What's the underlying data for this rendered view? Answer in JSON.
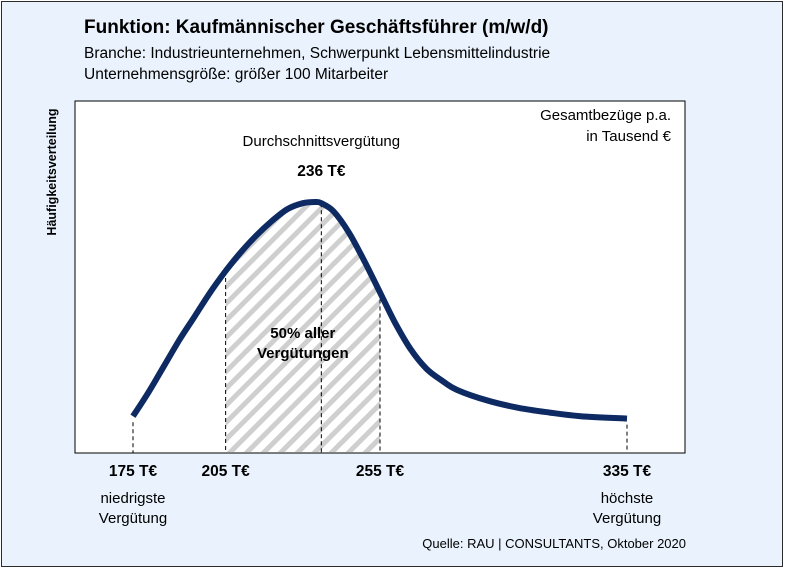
{
  "header": {
    "title": "Funktion: Kaufmännischer Geschäftsführer (m/w/d)",
    "subtitle_1": "Branche: Industrieunternehmen, Schwerpunkt Lebensmittelindustrie",
    "subtitle_2": "Unternehmensgröße: größer 100 Mitarbeiter"
  },
  "source": "Quelle: RAU | CONSULTANTS, Oktober 2020",
  "colors": {
    "card_background": "#eaf3fd",
    "curve": "#0d2a63",
    "hatch": "#cfcfcf"
  },
  "chart_data": {
    "type": "area",
    "ylabel": "Häufigkeitsverteilung",
    "unit_note_1": "Gesamtbezüge p.a.",
    "unit_note_2": "in Tausend €",
    "x_range": [
      160,
      345
    ],
    "y_range": [
      0,
      1
    ],
    "grid": false,
    "curve": {
      "x": [
        175,
        180,
        185,
        190,
        195,
        200,
        205,
        210,
        215,
        220,
        225,
        230,
        234,
        236,
        240,
        245,
        250,
        255,
        260,
        265,
        270,
        275,
        280,
        290,
        300,
        310,
        320,
        335
      ],
      "y": [
        0.1,
        0.2,
        0.31,
        0.42,
        0.52,
        0.62,
        0.71,
        0.79,
        0.86,
        0.92,
        0.97,
        0.995,
        1.0,
        0.995,
        0.96,
        0.87,
        0.75,
        0.62,
        0.49,
        0.38,
        0.3,
        0.25,
        0.21,
        0.165,
        0.135,
        0.115,
        0.1,
        0.09
      ]
    },
    "markers": [
      {
        "x": 175,
        "label": "175 T€",
        "note_1": "niedrigste",
        "note_2": "Vergütung"
      },
      {
        "x": 205,
        "label": "205 T€"
      },
      {
        "x": 236,
        "label": "236 T€",
        "note_1": "Durchschnittsvergütung"
      },
      {
        "x": 255,
        "label": "255 T€"
      },
      {
        "x": 335,
        "label": "335 T€",
        "note_1": "höchste",
        "note_2": "Vergütung"
      }
    ],
    "shaded_range": {
      "from": 205,
      "to": 255,
      "label_1": "50% aller",
      "label_2": "Vergütungen"
    }
  }
}
